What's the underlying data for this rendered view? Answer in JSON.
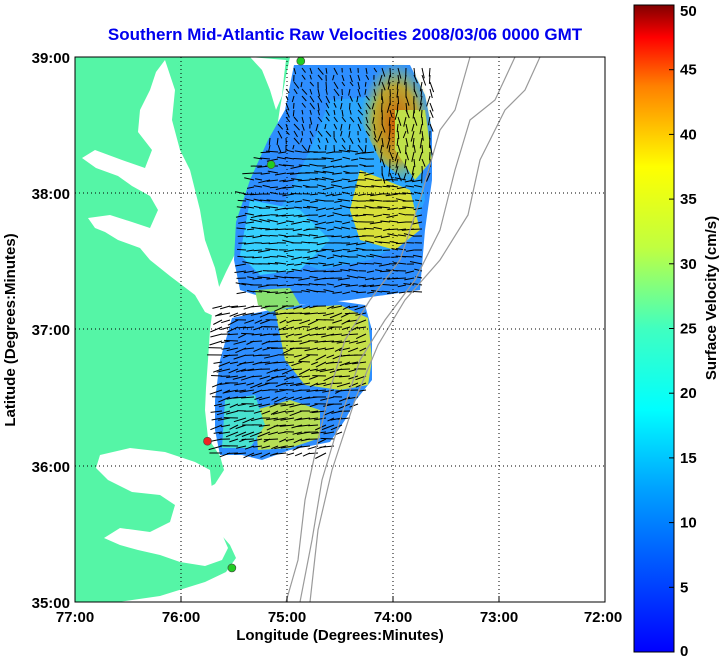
{
  "title": "Southern Mid-Atlantic Raw Velocities 2008/03/06 0000 GMT",
  "x_axis": {
    "label": "Longitude (Degrees:Minutes)",
    "ticks": [
      "77:00",
      "76:00",
      "75:00",
      "74:00",
      "73:00",
      "72:00"
    ]
  },
  "y_axis": {
    "label": "Latitude (Degrees:Minutes)",
    "ticks": [
      "39:00",
      "38:00",
      "37:00",
      "36:00",
      "35:00"
    ]
  },
  "colorbar": {
    "label": "Surface Velocity (cm/s)",
    "ticks": [
      "50",
      "45",
      "40",
      "35",
      "30",
      "25",
      "20",
      "15",
      "10",
      "5",
      "0"
    ],
    "min": 0,
    "max": 50,
    "colormap": "jet"
  },
  "map": {
    "extent": {
      "lon_west": 77,
      "lon_east": 72,
      "lat_south": 35,
      "lat_north": 39
    },
    "grid": "dotted",
    "land_color": "#55f5a6",
    "bathymetry_color": "#9a9a9a",
    "stations": [
      {
        "color": "#22cc22",
        "lat": 38.97,
        "lon": 74.87
      },
      {
        "color": "#22cc22",
        "lat": 38.21,
        "lon": 75.15
      },
      {
        "color": "#ee2222",
        "lat": 36.18,
        "lon": 75.75
      },
      {
        "color": "#22cc22",
        "lat": 35.25,
        "lon": 75.52
      }
    ]
  }
}
